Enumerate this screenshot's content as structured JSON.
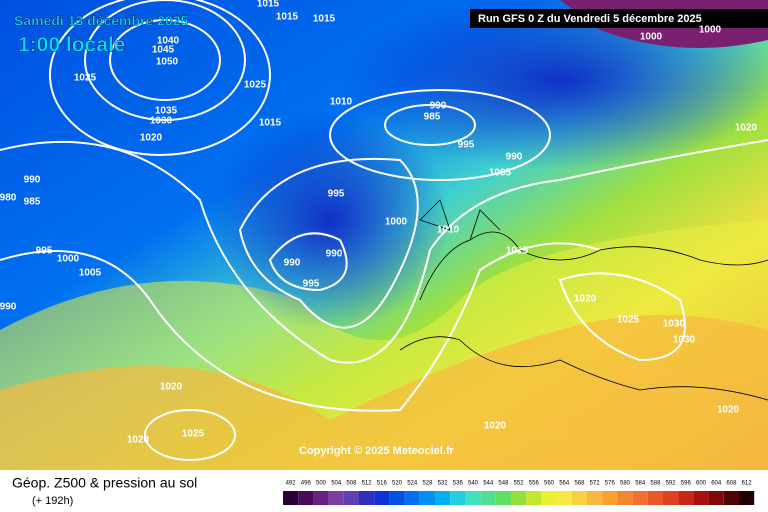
{
  "header": {
    "date": "Samedi 13 décembre 2025",
    "time": "1:00 locale",
    "run": "Run GFS 0 Z du Vendredi 5 décembre 2025"
  },
  "isobar_labels": [
    1015,
    1015,
    1015,
    1040,
    1045,
    1050,
    1025,
    1025,
    1035,
    1030,
    1020,
    1010,
    990,
    985,
    1015,
    995,
    990,
    1005,
    990,
    980,
    985,
    995,
    1000,
    1010,
    1015,
    995,
    1000,
    990,
    990,
    995,
    1005,
    990,
    1020,
    1025,
    1030,
    1030,
    1020,
    1020,
    1025,
    1020,
    1020,
    1000,
    1000,
    1020
  ],
  "copyright": "Copyright © 2025 Meteociel.fr",
  "footer": {
    "title": "Géop. Z500 & pression au sol",
    "lead": "(+ 192h)"
  },
  "scale": {
    "values": [
      492,
      496,
      500,
      504,
      508,
      512,
      516,
      520,
      524,
      528,
      532,
      536,
      540,
      544,
      548,
      552,
      556,
      560,
      564,
      568,
      572,
      576,
      580,
      584,
      588,
      592,
      596,
      600,
      604,
      608,
      612
    ],
    "colors": [
      "#2a0030",
      "#4a0a5a",
      "#6a2080",
      "#7a3fa0",
      "#6040b0",
      "#3030c0",
      "#1030d8",
      "#0050e8",
      "#0070f0",
      "#0090f0",
      "#00b0f0",
      "#20d0e0",
      "#40e0c0",
      "#50e090",
      "#60e060",
      "#90e040",
      "#c0e830",
      "#e8f030",
      "#f8e840",
      "#f8d040",
      "#f8b840",
      "#f8a030",
      "#f08830",
      "#f07030",
      "#e85828",
      "#e04020",
      "#c82818",
      "#a81010",
      "#800808",
      "#500404",
      "#200000"
    ]
  }
}
